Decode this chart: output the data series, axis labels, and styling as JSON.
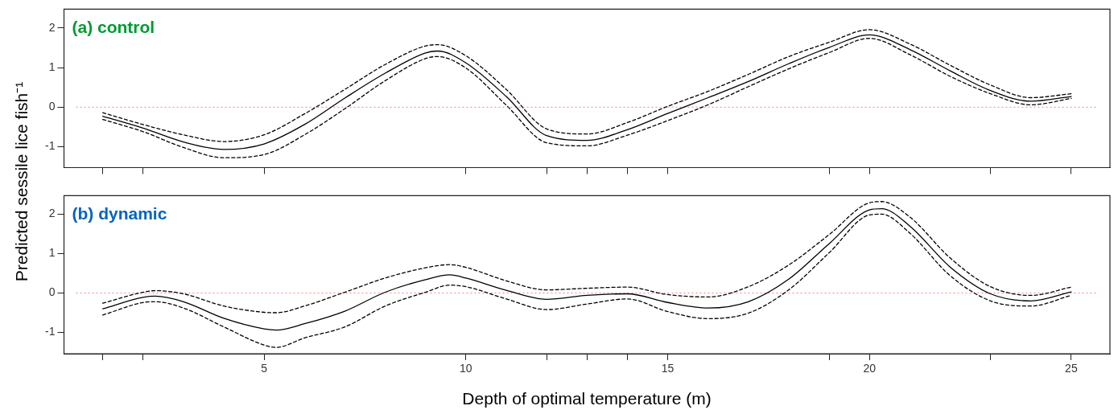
{
  "chart_data": [
    {
      "type": "line",
      "title": "(a) control",
      "ylabel": "Predicted sessile lice fish⁻¹",
      "marker": "none",
      "grid": false,
      "legend": false,
      "tick_labels": "y",
      "x": [
        1,
        2,
        3,
        4,
        5,
        6,
        7,
        8,
        9,
        9.3,
        10,
        11,
        12,
        13,
        14,
        15,
        16,
        17,
        18,
        19,
        20,
        21,
        22,
        23,
        24,
        25
      ],
      "xlim": [
        0.04,
        25.96
      ],
      "xticks": [
        {
          "value": 1,
          "label": null
        },
        {
          "value": 2,
          "label": null
        },
        5,
        10,
        {
          "value": 12,
          "label": null
        },
        {
          "value": 13,
          "label": null
        },
        {
          "value": 14,
          "label": null
        },
        15,
        {
          "value": 19,
          "label": null
        },
        20,
        {
          "value": 23,
          "label": null
        },
        25
      ],
      "ylim": [
        -1.53,
        2.48
      ],
      "yticks": [
        -1,
        0,
        1,
        2
      ],
      "ref_lines": [
        {
          "axis": "y",
          "value": 0,
          "color": "#ff8080",
          "line_style": "dotted"
        }
      ],
      "series": [
        {
          "color": "#000000",
          "line_style": "solid",
          "values": [
            -0.23,
            -0.53,
            -0.88,
            -1.07,
            -0.93,
            -0.44,
            0.23,
            0.86,
            1.37,
            1.42,
            1.12,
            0.27,
            -0.72,
            -0.84,
            -0.57,
            -0.16,
            0.24,
            0.65,
            1.1,
            1.51,
            1.83,
            1.46,
            0.92,
            0.42,
            0.15,
            0.27
          ]
        },
        {
          "color": "#000000",
          "line_style": "dashed",
          "values": [
            -0.14,
            -0.44,
            -0.7,
            -0.87,
            -0.7,
            -0.17,
            0.45,
            1.08,
            1.55,
            1.58,
            1.3,
            0.45,
            -0.55,
            -0.68,
            -0.39,
            0.02,
            0.4,
            0.83,
            1.28,
            1.64,
            1.96,
            1.6,
            1.06,
            0.56,
            0.24,
            0.34
          ]
        },
        {
          "color": "#000000",
          "line_style": "dashed",
          "values": [
            -0.31,
            -0.62,
            -1.02,
            -1.28,
            -1.2,
            -0.7,
            -0.04,
            0.67,
            1.23,
            1.28,
            0.99,
            0.05,
            -0.9,
            -0.98,
            -0.71,
            -0.34,
            0.06,
            0.52,
            0.97,
            1.38,
            1.74,
            1.33,
            0.78,
            0.34,
            0.06,
            0.22
          ]
        }
      ]
    },
    {
      "type": "line",
      "title": "(b) dynamic",
      "xlabel": "Depth of optimal temperature (m)",
      "marker": "none",
      "grid": false,
      "legend": false,
      "x": [
        1,
        2,
        2.3,
        3,
        4,
        5,
        5.3,
        6,
        7,
        8,
        9,
        9.6,
        10,
        11,
        12,
        13,
        14,
        15,
        16,
        17,
        18,
        19,
        20,
        20.3,
        21,
        22,
        23,
        24,
        25
      ],
      "xlim": [
        0.04,
        25.96
      ],
      "xticks": [
        {
          "value": 1,
          "label": null
        },
        {
          "value": 2,
          "label": null
        },
        5,
        10,
        {
          "value": 12,
          "label": null
        },
        {
          "value": 13,
          "label": null
        },
        {
          "value": 14,
          "label": null
        },
        15,
        {
          "value": 19,
          "label": null
        },
        20,
        {
          "value": 23,
          "label": null
        },
        25
      ],
      "ylim": [
        -1.54,
        2.47
      ],
      "yticks": [
        -1,
        0,
        1,
        2
      ],
      "ref_lines": [
        {
          "axis": "y",
          "value": 0,
          "color": "#ff8080",
          "line_style": "dotted"
        }
      ],
      "series": [
        {
          "color": "#000000",
          "line_style": "solid",
          "values": [
            -0.4,
            -0.11,
            -0.08,
            -0.22,
            -0.64,
            -0.91,
            -0.94,
            -0.78,
            -0.46,
            0.02,
            0.34,
            0.46,
            0.38,
            0.07,
            -0.16,
            -0.06,
            -0.02,
            -0.24,
            -0.38,
            -0.22,
            0.35,
            1.25,
            2.11,
            2.14,
            1.7,
            0.66,
            -0.02,
            -0.2,
            0.03
          ]
        },
        {
          "color": "#000000",
          "line_style": "dashed",
          "values": [
            -0.26,
            0.02,
            0.06,
            -0.02,
            -0.33,
            -0.49,
            -0.5,
            -0.33,
            0.02,
            0.38,
            0.64,
            0.72,
            0.65,
            0.31,
            0.08,
            0.12,
            0.15,
            -0.04,
            -0.1,
            0.16,
            0.71,
            1.48,
            2.29,
            2.32,
            1.93,
            0.89,
            0.16,
            -0.06,
            0.15
          ]
        },
        {
          "color": "#000000",
          "line_style": "dashed",
          "values": [
            -0.56,
            -0.24,
            -0.22,
            -0.38,
            -0.86,
            -1.32,
            -1.38,
            -1.14,
            -0.86,
            -0.33,
            0.02,
            0.2,
            0.16,
            -0.15,
            -0.42,
            -0.28,
            -0.15,
            -0.47,
            -0.65,
            -0.51,
            0.08,
            1.02,
            1.98,
            2.0,
            1.52,
            0.44,
            -0.2,
            -0.33,
            -0.06
          ]
        }
      ]
    }
  ]
}
